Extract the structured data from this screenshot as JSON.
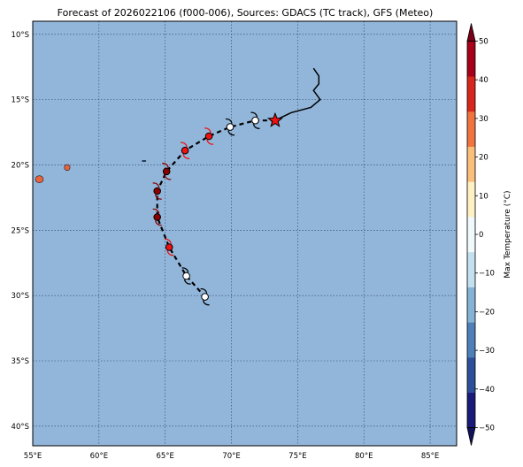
{
  "title": "Forecast of 2026022106 (f000-006), Sources: GDACS (TC track), GFS (Meteo)",
  "map": {
    "lon_range": [
      55,
      87
    ],
    "lat_range": [
      -41.5,
      -9
    ],
    "ocean_color": "#92b6da",
    "grid": true,
    "lon_ticks": [
      {
        "value": 55,
        "label": "55°E"
      },
      {
        "value": 60,
        "label": "60°E"
      },
      {
        "value": 65,
        "label": "65°E"
      },
      {
        "value": 70,
        "label": "70°E"
      },
      {
        "value": 75,
        "label": "75°E"
      },
      {
        "value": 80,
        "label": "80°E"
      },
      {
        "value": 85,
        "label": "85°E"
      }
    ],
    "lat_ticks": [
      {
        "value": -10,
        "label": "10°S"
      },
      {
        "value": -15,
        "label": "15°S"
      },
      {
        "value": -20,
        "label": "20°S"
      },
      {
        "value": -25,
        "label": "25°S"
      },
      {
        "value": -30,
        "label": "30°S"
      },
      {
        "value": -35,
        "label": "35°S"
      },
      {
        "value": -40,
        "label": "40°S"
      }
    ],
    "islands": [
      {
        "name": "reunion",
        "lon": 55.5,
        "lat": -21.1,
        "color": "#e7623d"
      },
      {
        "name": "mauritius",
        "lon": 57.6,
        "lat": -20.2,
        "color": "#e7623d"
      },
      {
        "name": "rodrigues",
        "lon": 63.4,
        "lat": -19.7,
        "color": "#2b5fa8"
      }
    ]
  },
  "track": {
    "past": [
      [
        76.2,
        -12.6
      ],
      [
        76.6,
        -13.2
      ],
      [
        76.6,
        -13.8
      ],
      [
        76.2,
        -14.3
      ],
      [
        76.7,
        -15.0
      ],
      [
        76.0,
        -15.6
      ],
      [
        74.5,
        -16.0
      ],
      [
        73.3,
        -16.6
      ]
    ],
    "forecast": [
      [
        73.3,
        -16.6
      ],
      [
        71.8,
        -16.6
      ],
      [
        69.9,
        -17.1
      ],
      [
        68.3,
        -17.8
      ],
      [
        66.5,
        -18.9
      ],
      [
        65.1,
        -20.5
      ],
      [
        64.4,
        -22.0
      ],
      [
        64.4,
        -24.0
      ],
      [
        65.3,
        -26.3
      ],
      [
        66.6,
        -28.5
      ],
      [
        68.0,
        -30.1
      ]
    ],
    "current_position": {
      "lon": 73.3,
      "lat": -16.6,
      "marker": "star-icon",
      "color": "#ee1111"
    },
    "symbols": [
      {
        "lon": 71.8,
        "lat": -16.6,
        "color": "#ffffff"
      },
      {
        "lon": 69.9,
        "lat": -17.1,
        "color": "#ffffff"
      },
      {
        "lon": 68.3,
        "lat": -17.8,
        "color": "#ee1111"
      },
      {
        "lon": 66.5,
        "lat": -18.9,
        "color": "#ee1111"
      },
      {
        "lon": 65.1,
        "lat": -20.5,
        "color": "#8b0000"
      },
      {
        "lon": 64.4,
        "lat": -22.0,
        "color": "#8b0000"
      },
      {
        "lon": 64.4,
        "lat": -24.0,
        "color": "#8b0000"
      },
      {
        "lon": 65.3,
        "lat": -26.3,
        "color": "#ee1111"
      },
      {
        "lon": 66.6,
        "lat": -28.5,
        "color": "#ffffff"
      },
      {
        "lon": 68.0,
        "lat": -30.1,
        "color": "#ffffff"
      }
    ]
  },
  "colorbar": {
    "label": "Max Temperature (°C)",
    "min": -50,
    "max": 50,
    "step": 10,
    "tick_values": [
      50,
      40,
      30,
      20,
      10,
      0,
      -10,
      -20,
      -30,
      -40,
      -50
    ],
    "tick_labels": [
      "50",
      "40",
      "30",
      "20",
      "10",
      "0",
      "−10",
      "−20",
      "−30",
      "−40",
      "−50"
    ],
    "colors_bottom_to_top": [
      "#1a1a78",
      "#2d4f9a",
      "#4f7fb8",
      "#85b3d5",
      "#c2e0ee",
      "#f0f9fc",
      "#fff1c4",
      "#fbbf7c",
      "#f0743f",
      "#d7261c",
      "#a6001a"
    ],
    "under_color": "#12125c",
    "over_color": "#7a0018"
  }
}
